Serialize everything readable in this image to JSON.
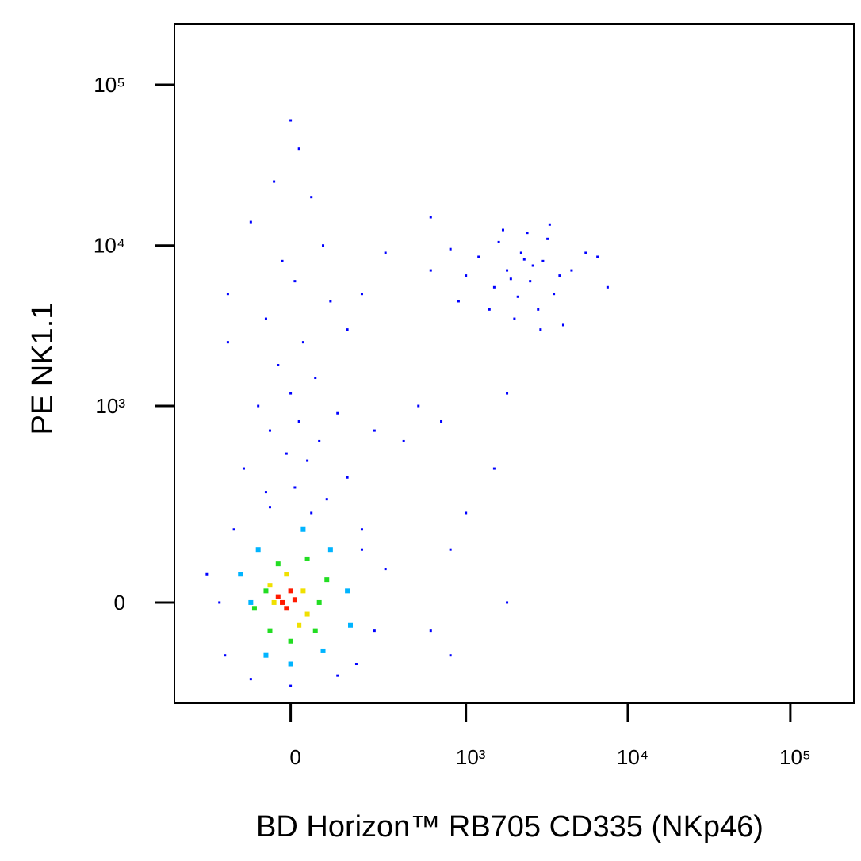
{
  "chart_data": {
    "type": "scatter",
    "xscale": "biexponential",
    "yscale": "biexponential",
    "xlabel": "BD Horizon™ RB705 CD335 (NKp46)",
    "ylabel": "PE  NK1.1",
    "xlim": [
      -420,
      246000
    ],
    "ylim": [
      -240,
      240000
    ],
    "xticks": [
      0,
      {
        "value": 1000,
        "label": "10³"
      },
      {
        "value": 10000,
        "label": "10⁴"
      },
      {
        "value": 100000,
        "label": "10⁵"
      }
    ],
    "yticks": [
      0,
      {
        "value": 1000,
        "label": "10³"
      },
      {
        "value": 10000,
        "label": "10⁴"
      },
      {
        "value": 100000,
        "label": "10⁵"
      }
    ],
    "series": [
      {
        "color": "#0000ff",
        "x": [
          1800,
          2500,
          3000,
          2200,
          1500,
          1200,
          3500,
          2800,
          2000,
          4500,
          5500,
          1600,
          2400,
          3200,
          1000,
          800,
          2600,
          1900,
          3800,
          2100,
          1400,
          2900,
          4000,
          6500,
          7500,
          900,
          1700,
          3300,
          600,
          2300,
          600,
          500,
          400,
          250,
          700,
          1000,
          1800,
          1500,
          800,
          1800,
          800,
          200,
          600,
          0,
          20,
          -40,
          50,
          -100,
          80,
          -20,
          10,
          100,
          -60,
          30,
          -30,
          60,
          0,
          -80,
          120,
          20,
          -50,
          70,
          -10,
          40,
          -120,
          150,
          10,
          -60,
          90,
          200,
          300,
          -170,
          -170,
          150,
          -200,
          250,
          -150,
          200,
          0,
          -100,
          120,
          -250,
          300,
          180,
          -180,
          50,
          -50
        ],
        "y": [
          7000,
          6000,
          8000,
          9000,
          5500,
          8500,
          5000,
          4000,
          3500,
          7000,
          9000,
          10500,
          12000,
          11000,
          6500,
          9500,
          7500,
          6200,
          6500,
          4800,
          4000,
          3000,
          3200,
          8500,
          5500,
          4500,
          12500,
          13500,
          7000,
          8200,
          15000,
          1000,
          600,
          700,
          800,
          200,
          1200,
          400,
          -100,
          0,
          100,
          100,
          -50,
          60000,
          40000,
          25000,
          20000,
          14000,
          10000,
          8000,
          6000,
          4500,
          3500,
          2500,
          1800,
          1500,
          1200,
          1000,
          900,
          800,
          700,
          600,
          500,
          450,
          400,
          350,
          300,
          280,
          250,
          5000,
          9000,
          5000,
          2500,
          3000,
          0,
          -50,
          150,
          150,
          -180,
          -160,
          -150,
          50,
          60,
          -120,
          -100,
          200,
          220
        ]
      },
      {
        "color": "#00b4ff",
        "x": [
          -100,
          150,
          -80,
          100,
          0,
          -60,
          80,
          -130,
          160,
          30
        ],
        "y": [
          0,
          20,
          100,
          100,
          -120,
          -100,
          -90,
          50,
          -40,
          150
        ]
      },
      {
        "color": "#22dd22",
        "x": [
          -60,
          70,
          -30,
          40,
          0,
          -50,
          60,
          -90,
          90
        ],
        "y": [
          20,
          0,
          70,
          80,
          -70,
          -50,
          -50,
          -10,
          40
        ]
      },
      {
        "color": "#f0e000",
        "x": [
          -40,
          30,
          -10,
          20,
          -50,
          40
        ],
        "y": [
          0,
          20,
          50,
          -40,
          30,
          -20
        ]
      },
      {
        "color": "#ff1a00",
        "x": [
          -20,
          0,
          -10,
          10,
          -30
        ],
        "y": [
          0,
          20,
          -10,
          5,
          10
        ]
      }
    ]
  }
}
